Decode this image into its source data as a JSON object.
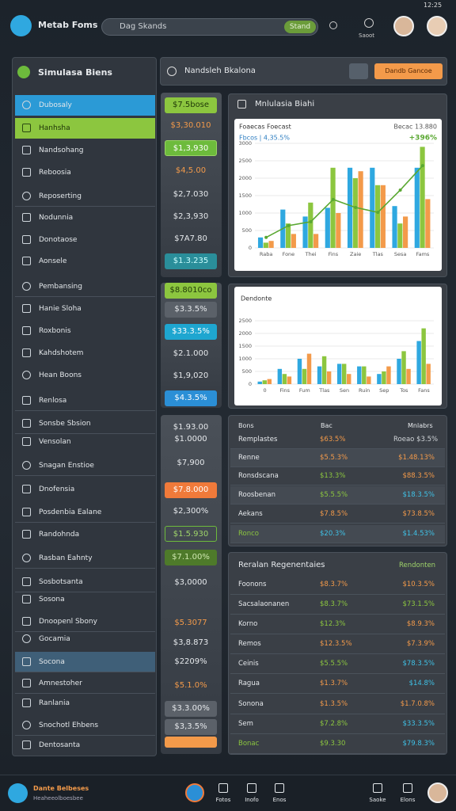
{
  "status": {
    "time": "12:25"
  },
  "header": {
    "title": "Metab Foms",
    "search": "Dag Skands",
    "search_button": "Stand",
    "icon_label": "Saoot"
  },
  "sidebar": {
    "title": "Simulasa Biens",
    "items": [
      "Dubosaly",
      "Hanhsha",
      "Nandsohang",
      "Reboosia",
      "Reposerting",
      "Nodunnia",
      "Donotaose",
      "Aonsele",
      "Pembansing",
      "Hanie Sloha",
      "Roxbonis",
      "Kahdshotem",
      "Hean Boons",
      "Renlosa",
      "Sonsbe Sbsion",
      "Vensolan",
      "Snagan Enstioe",
      "Dnofensia",
      "Posdenbia Ealane",
      "Randohnda",
      "Rasban Eahnty",
      "Sosbotsanta",
      "Sosona",
      "Dnoopenl Sbony",
      "Gocamia",
      "Socona",
      "Amnestoher",
      "Ranlania",
      "Snochotl Ehbens",
      "Dentosanta"
    ]
  },
  "tiles": [
    "$7.5bose",
    "$3,30.010",
    "$1,3,930",
    "$4,5.00",
    "$2,7.030",
    "$2,3,930",
    "$7A7.80",
    "$1.3.235",
    "$8.8010co",
    "$3.3.5%",
    "$33.3.5%",
    "$2.1.000",
    "$1,9,020",
    "$4.3.5%",
    "$1.93.00",
    "$1.0000",
    "$7,900",
    "$7.8.000",
    "$2,300%",
    "$1.5.930",
    "$7.1.00%",
    "$3,0000",
    "$5.3077",
    "$3,8.873",
    "$2209%",
    "$5.1.0%",
    "$3.3.00%",
    "$3,3.5%"
  ],
  "toolbar": {
    "title": "Nandsleh Bkalona",
    "button": "Dandb Gancoe"
  },
  "chart_data": [
    {
      "type": "bar",
      "title": "Mnlulasia Biahi",
      "subtitle": "Foaecas Foecast",
      "annotations": [
        "Fbcos | 4,35.5%",
        "Becac 13.880",
        "+396%"
      ],
      "categories": [
        "Raba",
        "Fone",
        "Thei",
        "Fins",
        "Zaie",
        "Tlas",
        "Sesa",
        "Fams"
      ],
      "series": [
        {
          "color": "#2fa8e0",
          "values": [
            300,
            1100,
            900,
            1150,
            2300,
            2300,
            1200,
            2300
          ]
        },
        {
          "color": "#8cc63f",
          "values": [
            150,
            700,
            1300,
            2300,
            2000,
            1800,
            700,
            2900
          ]
        },
        {
          "color": "#f39a4a",
          "values": [
            200,
            400,
            400,
            1000,
            2200,
            1800,
            900,
            1400
          ]
        },
        {
          "type": "line",
          "color": "#5aa832",
          "values": [
            300,
            640,
            750,
            1390,
            1160,
            1020,
            1660,
            2360
          ]
        }
      ],
      "ylim": [
        0,
        3000
      ],
      "yticks": [
        0,
        500,
        1000,
        1500,
        2000,
        2500,
        3000
      ],
      "grid": true
    },
    {
      "type": "bar",
      "title": "Dendonte",
      "categories": [
        "0",
        "Fins",
        "Fum",
        "Tlas",
        "Sen",
        "Ruin",
        "Sep",
        "Tos",
        "Fans"
      ],
      "series": [
        {
          "color": "#2fa8e0",
          "values": [
            100,
            600,
            1000,
            700,
            800,
            700,
            400,
            1000,
            1700
          ]
        },
        {
          "color": "#8cc63f",
          "values": [
            150,
            400,
            600,
            1100,
            800,
            700,
            500,
            1300,
            2200
          ]
        },
        {
          "color": "#f39a4a",
          "values": [
            200,
            300,
            1200,
            500,
            400,
            300,
            700,
            600,
            800
          ]
        }
      ],
      "ylim": [
        0,
        2500
      ],
      "yticks": [
        0,
        500,
        1000,
        1500,
        2000,
        2500
      ],
      "grid": true
    }
  ],
  "tables": [
    {
      "headers": [
        "Bons",
        "Bac",
        "Mnlabrs"
      ],
      "rows": [
        [
          "Remplastes",
          "$63.5%",
          "Roeao $3.5%"
        ],
        [
          "Renne",
          "$5.5.3%",
          "$1.48.13%"
        ],
        [
          "Ronsdscana",
          "$13.3%",
          "$88.3.5%"
        ],
        [
          "Roosbenan",
          "$5.5.5%",
          "$18.3.5%"
        ],
        [
          "Aekans",
          "$7.8.5%",
          "$73.8.5%"
        ],
        [
          "Ronco",
          "$20.3%",
          "$1.4.53%"
        ]
      ]
    },
    {
      "title": "Reralan Regenentaies",
      "subtitle": "Rendonten",
      "rows": [
        [
          "Foonons",
          "$8.3.7%",
          "$10.3.5%"
        ],
        [
          "Sacsalaonanen",
          "$8.3.7%",
          "$73.1.5%"
        ],
        [
          "Korno",
          "$12.3%",
          "$8.9.3%"
        ],
        [
          "Remos",
          "$12.3.5%",
          "$7.3.9%"
        ],
        [
          "Ceinis",
          "$5.5.5%",
          "$78.3.5%"
        ],
        [
          "Ragua",
          "$1.3.7%",
          "$14.8%"
        ],
        [
          "Sonona",
          "$1.3.5%",
          "$1.7.0.8%"
        ],
        [
          "Sem",
          "$7.2.8%",
          "$33.3.5%"
        ],
        [
          "Bonac",
          "$9.3.30",
          "$79.8.3%"
        ]
      ]
    }
  ],
  "bottom_bar": {
    "title": "Dante Belbeses",
    "subtitle": "Heaheeolboesbee",
    "items": [
      "Fotos",
      "Inofo",
      "Enos",
      "Saoke",
      "Elons"
    ]
  }
}
